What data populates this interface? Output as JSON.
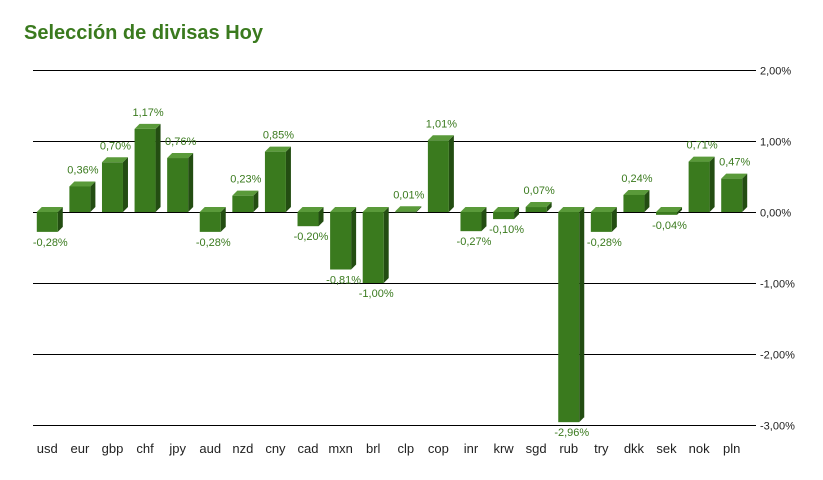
{
  "chart_data": {
    "type": "bar",
    "title": "Selección de divisas Hoy",
    "categories": [
      "usd",
      "eur",
      "gbp",
      "chf",
      "jpy",
      "aud",
      "nzd",
      "cny",
      "cad",
      "mxn",
      "brl",
      "clp",
      "cop",
      "inr",
      "krw",
      "sgd",
      "rub",
      "try",
      "dkk",
      "sek",
      "nok",
      "pln"
    ],
    "values": [
      -0.28,
      0.36,
      0.7,
      1.17,
      0.76,
      -0.28,
      0.23,
      0.85,
      -0.2,
      -0.81,
      -1.0,
      0.01,
      1.01,
      -0.27,
      -0.1,
      0.07,
      -2.96,
      -0.28,
      0.24,
      -0.04,
      0.71,
      0.47
    ],
    "data_labels": [
      "-0,28%",
      "0,36%",
      "0,70%",
      "1,17%",
      "0,76%",
      "-0,28%",
      "0,23%",
      "0,85%",
      "-0,20%",
      "-0,81%",
      "-1,00%",
      "0,01%",
      "1,01%",
      "-0,27%",
      "-0,10%",
      "0,07%",
      "-2,96%",
      "-0,28%",
      "0,24%",
      "-0,04%",
      "0,71%",
      "0,47%"
    ],
    "y_ticks": [
      2,
      1,
      0,
      -1,
      -2,
      -3
    ],
    "y_tick_labels": [
      "2,00%",
      "1,00%",
      "0,00%",
      "-1,00%",
      "-2,00%",
      "-3,00%"
    ],
    "ylim": [
      -3,
      2
    ],
    "y_axis_position": "right",
    "grid": true,
    "xlabel": "",
    "ylabel": "",
    "colors": {
      "bar_front": "#3a7a1e",
      "bar_top": "#5a9a3a",
      "bar_side": "#234d12",
      "label": "#3a7a1e",
      "title": "#3a7a1e",
      "grid": "#000000"
    }
  }
}
